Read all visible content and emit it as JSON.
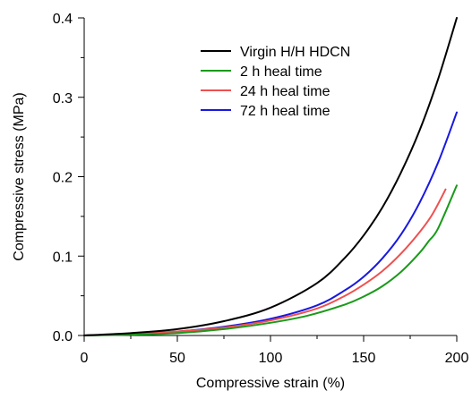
{
  "chart_data": {
    "type": "line",
    "title": "",
    "xlabel": "Compressive strain (%)",
    "ylabel": "Compressive stress (MPa)",
    "xlim": [
      0,
      200
    ],
    "ylim": [
      0,
      0.4
    ],
    "xticks": [
      0,
      50,
      100,
      150,
      200
    ],
    "xtick_labels": [
      "0",
      "50",
      "100",
      "150",
      "200"
    ],
    "yticks": [
      0.0,
      0.1,
      0.2,
      0.3,
      0.4
    ],
    "ytick_labels": [
      "0.0",
      "0.1",
      "0.2",
      "0.3",
      "0.4"
    ],
    "grid": false,
    "legend_position": "top-right",
    "series": [
      {
        "name": "Virgin H/H HDCN",
        "color": "#000000",
        "x": [
          0,
          25,
          50,
          75,
          100,
          125,
          140,
          150,
          160,
          170,
          180,
          190,
          200
        ],
        "y": [
          0.0,
          0.003,
          0.008,
          0.018,
          0.035,
          0.066,
          0.098,
          0.126,
          0.161,
          0.205,
          0.258,
          0.323,
          0.4
        ]
      },
      {
        "name": "2 h heal time",
        "color": "#1a9a1a",
        "x": [
          0,
          25,
          50,
          75,
          100,
          120,
          140,
          150,
          160,
          170,
          180,
          185,
          190,
          200
        ],
        "y": [
          0.0,
          0.001,
          0.003,
          0.008,
          0.016,
          0.025,
          0.039,
          0.049,
          0.062,
          0.08,
          0.104,
          0.119,
          0.135,
          0.189
        ]
      },
      {
        "name": "24 h heal time",
        "color": "#f05050",
        "x": [
          0,
          25,
          50,
          75,
          100,
          125,
          140,
          150,
          160,
          170,
          180,
          187,
          194
        ],
        "y": [
          0.0,
          0.002,
          0.005,
          0.01,
          0.019,
          0.034,
          0.05,
          0.064,
          0.081,
          0.103,
          0.13,
          0.153,
          0.184
        ]
      },
      {
        "name": "72 h heal time",
        "color": "#1818e0",
        "x": [
          0,
          25,
          50,
          75,
          100,
          125,
          140,
          150,
          160,
          170,
          180,
          190,
          200
        ],
        "y": [
          0.0,
          0.002,
          0.005,
          0.011,
          0.021,
          0.038,
          0.057,
          0.074,
          0.097,
          0.127,
          0.167,
          0.218,
          0.281
        ]
      }
    ]
  }
}
